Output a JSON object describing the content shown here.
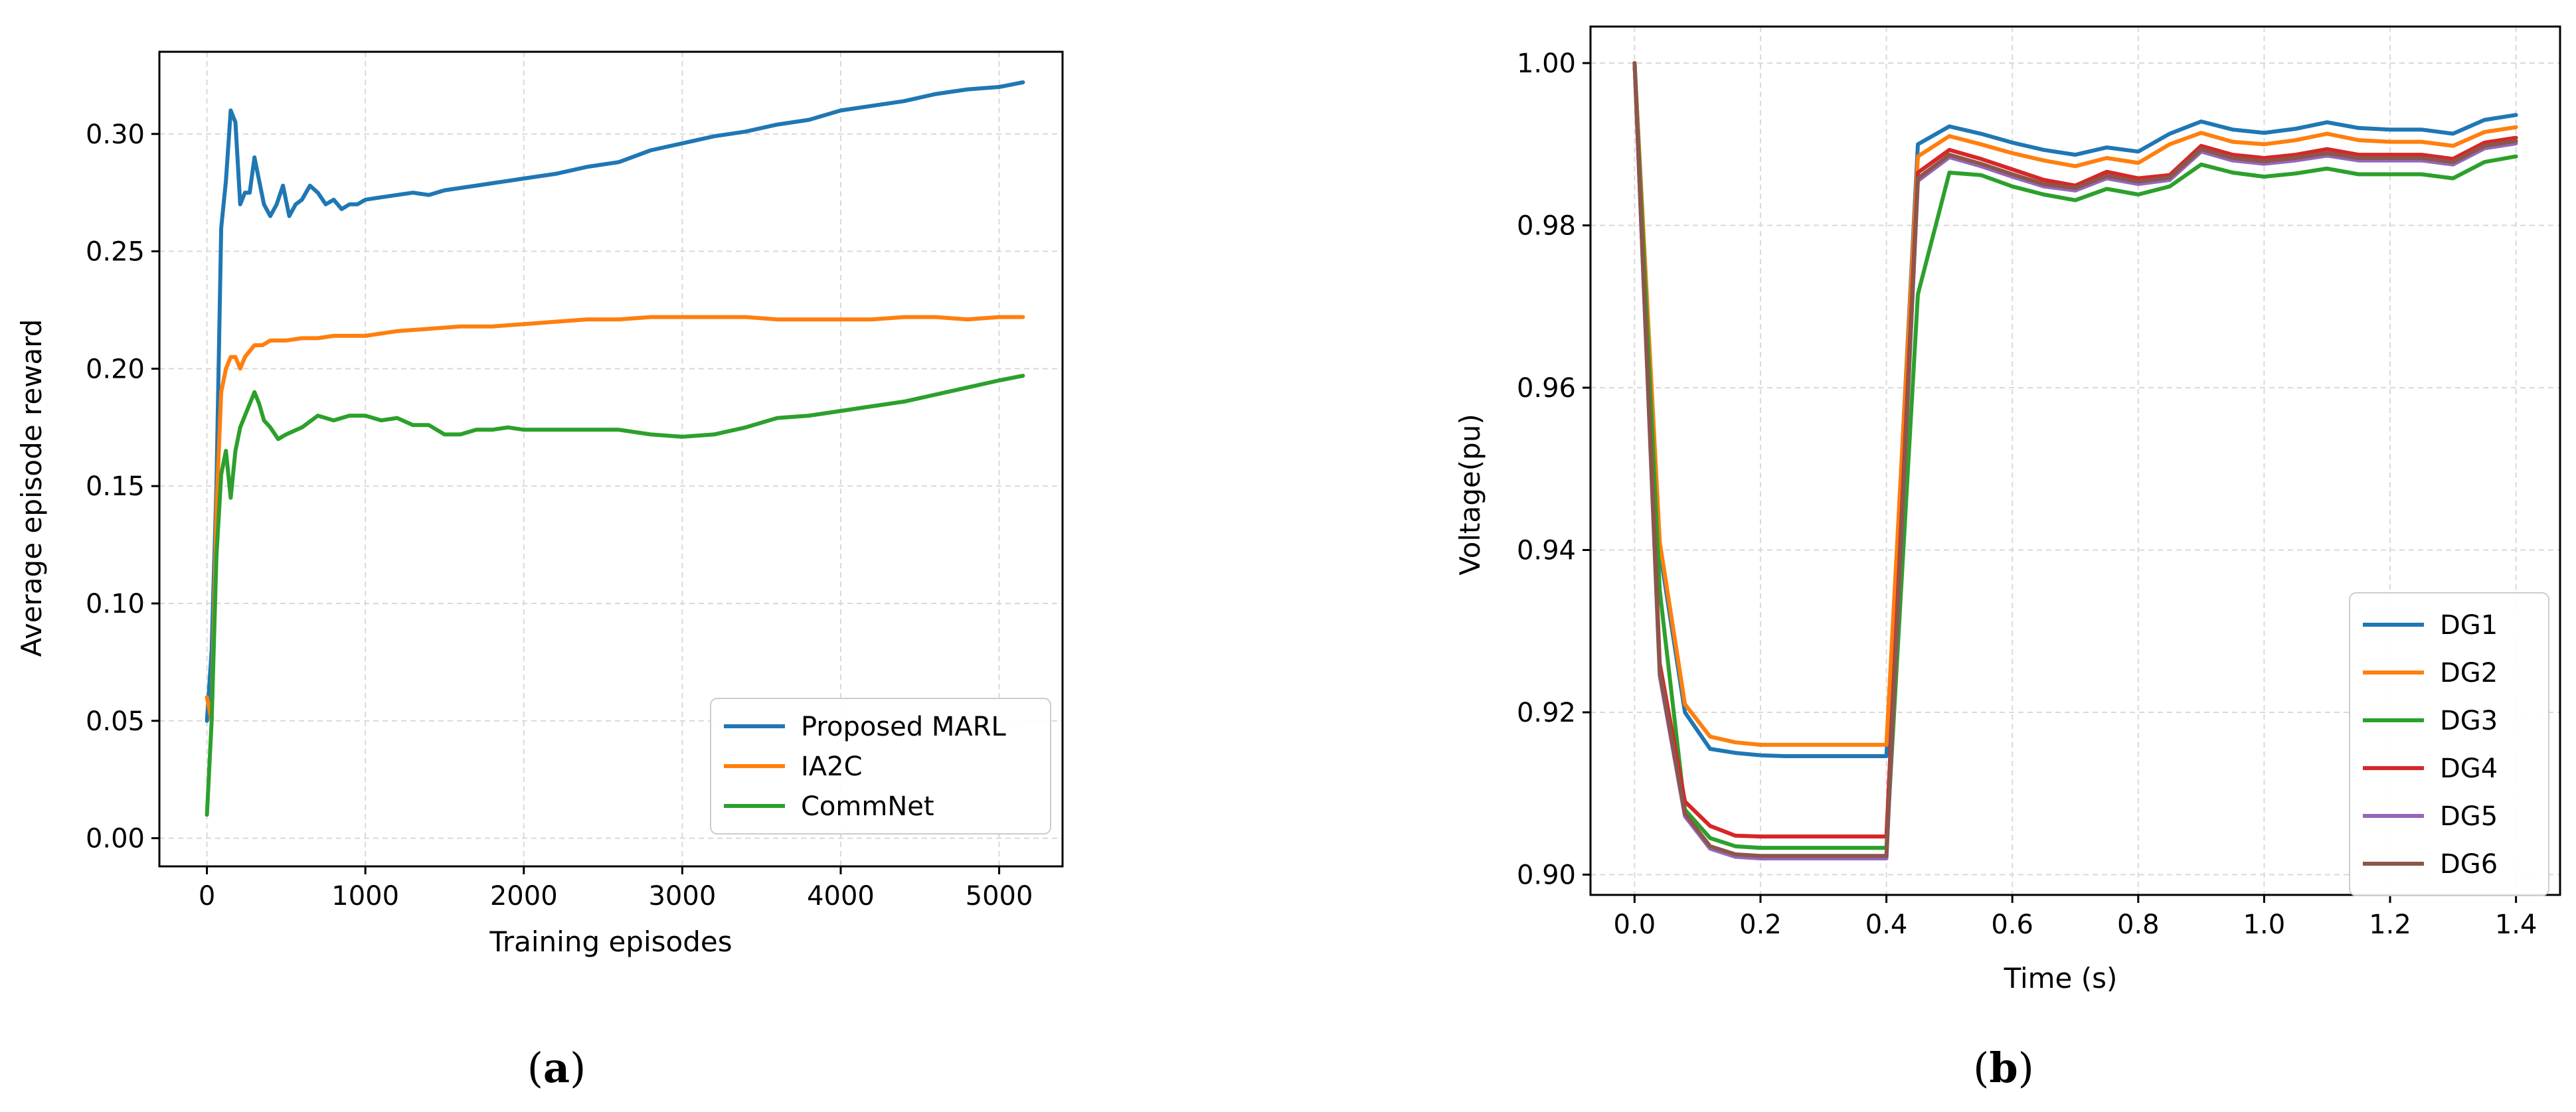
{
  "chart_data": [
    {
      "type": "line",
      "panel": "(a)",
      "xlabel": "Training episodes",
      "ylabel": "Average episode reward",
      "xlim": [
        -300,
        5400
      ],
      "ylim": [
        -0.012,
        0.335
      ],
      "xticks": [
        0,
        1000,
        2000,
        3000,
        4000,
        5000
      ],
      "xtick_labels": [
        "0",
        "1000",
        "2000",
        "3000",
        "4000",
        "5000"
      ],
      "yticks": [
        0.0,
        0.05,
        0.1,
        0.15,
        0.2,
        0.25,
        0.3
      ],
      "ytick_labels": [
        "0.00",
        "0.05",
        "0.10",
        "0.15",
        "0.20",
        "0.25",
        "0.30"
      ],
      "grid": true,
      "legend_position": "lower-right",
      "series": [
        {
          "name": "Proposed MARL",
          "color": "#1f77b4",
          "x": [
            0,
            30,
            60,
            90,
            120,
            150,
            180,
            210,
            240,
            270,
            300,
            330,
            360,
            400,
            440,
            480,
            520,
            560,
            600,
            650,
            700,
            750,
            800,
            850,
            900,
            950,
            1000,
            1100,
            1200,
            1300,
            1400,
            1500,
            1600,
            1700,
            1800,
            1900,
            2000,
            2200,
            2400,
            2600,
            2800,
            3000,
            3200,
            3400,
            3600,
            3800,
            4000,
            4200,
            4400,
            4600,
            4800,
            5000,
            5150
          ],
          "y": [
            0.05,
            0.08,
            0.15,
            0.26,
            0.28,
            0.31,
            0.305,
            0.27,
            0.275,
            0.275,
            0.29,
            0.28,
            0.27,
            0.265,
            0.27,
            0.278,
            0.265,
            0.27,
            0.272,
            0.278,
            0.275,
            0.27,
            0.272,
            0.268,
            0.27,
            0.27,
            0.272,
            0.273,
            0.274,
            0.275,
            0.274,
            0.276,
            0.277,
            0.278,
            0.279,
            0.28,
            0.281,
            0.283,
            0.286,
            0.288,
            0.293,
            0.296,
            0.299,
            0.301,
            0.304,
            0.306,
            0.31,
            0.312,
            0.314,
            0.317,
            0.319,
            0.32,
            0.322
          ]
        },
        {
          "name": "IA2C",
          "color": "#ff7f0e",
          "x": [
            0,
            30,
            60,
            90,
            120,
            150,
            180,
            210,
            240,
            300,
            350,
            400,
            500,
            600,
            700,
            800,
            900,
            1000,
            1200,
            1400,
            1600,
            1800,
            2000,
            2200,
            2400,
            2600,
            2800,
            3000,
            3200,
            3400,
            3600,
            3800,
            4000,
            4200,
            4400,
            4600,
            4800,
            5000,
            5150
          ],
          "y": [
            0.06,
            0.05,
            0.14,
            0.19,
            0.2,
            0.205,
            0.205,
            0.2,
            0.205,
            0.21,
            0.21,
            0.212,
            0.212,
            0.213,
            0.213,
            0.214,
            0.214,
            0.214,
            0.216,
            0.217,
            0.218,
            0.218,
            0.219,
            0.22,
            0.221,
            0.221,
            0.222,
            0.222,
            0.222,
            0.222,
            0.221,
            0.221,
            0.221,
            0.221,
            0.222,
            0.222,
            0.221,
            0.222,
            0.222
          ]
        },
        {
          "name": "CommNet",
          "color": "#2ca02c",
          "x": [
            0,
            30,
            60,
            90,
            120,
            150,
            180,
            210,
            240,
            270,
            300,
            330,
            360,
            400,
            450,
            500,
            600,
            700,
            800,
            900,
            1000,
            1100,
            1200,
            1300,
            1400,
            1500,
            1600,
            1700,
            1800,
            1900,
            2000,
            2200,
            2400,
            2600,
            2800,
            3000,
            3200,
            3400,
            3600,
            3800,
            4000,
            4200,
            4400,
            4600,
            4800,
            5000,
            5150
          ],
          "y": [
            0.01,
            0.05,
            0.12,
            0.155,
            0.165,
            0.145,
            0.165,
            0.175,
            0.18,
            0.185,
            0.19,
            0.185,
            0.178,
            0.175,
            0.17,
            0.172,
            0.175,
            0.18,
            0.178,
            0.18,
            0.18,
            0.178,
            0.179,
            0.176,
            0.176,
            0.172,
            0.172,
            0.174,
            0.174,
            0.175,
            0.174,
            0.174,
            0.174,
            0.174,
            0.172,
            0.171,
            0.172,
            0.175,
            0.179,
            0.18,
            0.182,
            0.184,
            0.186,
            0.189,
            0.192,
            0.195,
            0.197
          ]
        }
      ]
    },
    {
      "type": "line",
      "panel": "(b)",
      "xlabel": "Time (s)",
      "ylabel": "Voltage(pu)",
      "xlim": [
        -0.07,
        1.47
      ],
      "ylim": [
        0.8975,
        1.0045
      ],
      "xticks": [
        0.0,
        0.2,
        0.4,
        0.6,
        0.8,
        1.0,
        1.2,
        1.4
      ],
      "xtick_labels": [
        "0.0",
        "0.2",
        "0.4",
        "0.6",
        "0.8",
        "1.0",
        "1.2",
        "1.4"
      ],
      "yticks": [
        0.9,
        0.92,
        0.94,
        0.96,
        0.98,
        1.0
      ],
      "ytick_labels": [
        "0.90",
        "0.92",
        "0.94",
        "0.96",
        "0.98",
        "1.00"
      ],
      "grid": true,
      "legend_position": "lower-right",
      "x": [
        0,
        0.04,
        0.08,
        0.12,
        0.16,
        0.2,
        0.24,
        0.28,
        0.32,
        0.36,
        0.4,
        0.45,
        0.5,
        0.55,
        0.6,
        0.65,
        0.7,
        0.75,
        0.8,
        0.85,
        0.9,
        0.95,
        1.0,
        1.05,
        1.1,
        1.15,
        1.2,
        1.25,
        1.3,
        1.35,
        1.4
      ],
      "series": [
        {
          "name": "DG1",
          "color": "#1f77b4",
          "values": [
            1.0,
            0.94,
            0.92,
            0.9155,
            0.915,
            0.9147,
            0.9146,
            0.9146,
            0.9146,
            0.9146,
            0.9146,
            0.99,
            0.9922,
            0.9913,
            0.9902,
            0.9893,
            0.9887,
            0.9896,
            0.9891,
            0.9913,
            0.9928,
            0.9918,
            0.9914,
            0.9919,
            0.9927,
            0.992,
            0.9918,
            0.9918,
            0.9913,
            0.993,
            0.9936
          ]
        },
        {
          "name": "DG2",
          "color": "#ff7f0e",
          "values": [
            1.0,
            0.941,
            0.921,
            0.917,
            0.9163,
            0.916,
            0.916,
            0.916,
            0.916,
            0.916,
            0.916,
            0.9885,
            0.991,
            0.99,
            0.9889,
            0.988,
            0.9873,
            0.9883,
            0.9877,
            0.99,
            0.9914,
            0.9903,
            0.99,
            0.9905,
            0.9913,
            0.9905,
            0.9903,
            0.9903,
            0.9898,
            0.9915,
            0.9921
          ]
        },
        {
          "name": "DG3",
          "color": "#2ca02c",
          "values": [
            1.0,
            0.935,
            0.908,
            0.9045,
            0.9035,
            0.9033,
            0.9033,
            0.9033,
            0.9033,
            0.9033,
            0.9033,
            0.9715,
            0.9865,
            0.9862,
            0.9848,
            0.9838,
            0.9831,
            0.9845,
            0.9838,
            0.9848,
            0.9875,
            0.9865,
            0.986,
            0.9864,
            0.987,
            0.9863,
            0.9863,
            0.9863,
            0.9858,
            0.9878,
            0.9885
          ]
        },
        {
          "name": "DG4",
          "color": "#d62728",
          "values": [
            1.0,
            0.926,
            0.909,
            0.906,
            0.9048,
            0.9047,
            0.9047,
            0.9047,
            0.9047,
            0.9047,
            0.9047,
            0.9865,
            0.9893,
            0.9882,
            0.9869,
            0.9856,
            0.9849,
            0.9866,
            0.9858,
            0.9862,
            0.9898,
            0.9887,
            0.9883,
            0.9887,
            0.9894,
            0.9887,
            0.9887,
            0.9887,
            0.9882,
            0.9902,
            0.9908
          ]
        },
        {
          "name": "DG5",
          "color": "#9467bd",
          "values": [
            1.0,
            0.9245,
            0.9072,
            0.9032,
            0.9022,
            0.902,
            0.902,
            0.902,
            0.902,
            0.902,
            0.902,
            0.9855,
            0.9884,
            0.9873,
            0.986,
            0.9848,
            0.9843,
            0.9858,
            0.9851,
            0.9856,
            0.9891,
            0.988,
            0.9876,
            0.988,
            0.9886,
            0.988,
            0.988,
            0.988,
            0.9875,
            0.9895,
            0.9901
          ]
        },
        {
          "name": "DG6",
          "color": "#8c564b",
          "values": [
            1.0,
            0.925,
            0.9075,
            0.9035,
            0.9025,
            0.9023,
            0.9023,
            0.9023,
            0.9023,
            0.9023,
            0.9023,
            0.9858,
            0.9887,
            0.9876,
            0.9863,
            0.9851,
            0.9846,
            0.9861,
            0.9854,
            0.9859,
            0.9894,
            0.9883,
            0.9879,
            0.9883,
            0.9889,
            0.9883,
            0.9883,
            0.9883,
            0.9878,
            0.9898,
            0.9904
          ]
        }
      ]
    }
  ]
}
